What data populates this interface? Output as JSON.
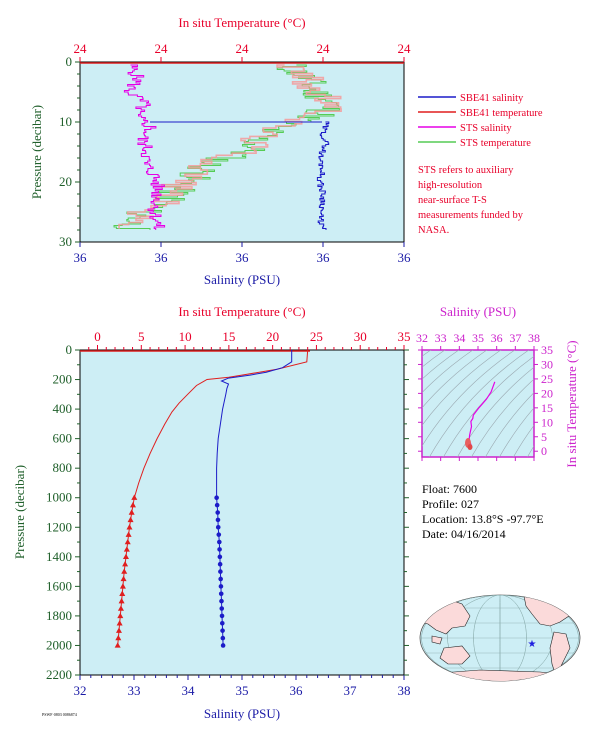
{
  "colors": {
    "panel_bg": "#cdeef5",
    "temperature_axis": "#e8002a",
    "salinity_axis": "#1a1aa6",
    "pressure_axis": "#1f5f2a",
    "ts_axis": "#cc22cc",
    "sbe41_salinity": "#1c1cc8",
    "sbe41_temperature": "#e01f1f",
    "sts_salinity": "#e600e6",
    "sts_temperature": "#55cc55",
    "sts_temperature_hi": "#f59a9a",
    "map_ocean": "#cdeef5",
    "map_land": "#fbdada",
    "float_marker": "#2020e0"
  },
  "chart_data": [
    {
      "id": "top-profile",
      "type": "line",
      "x_top_label": "In situ Temperature (°C)",
      "x_top_ticks": [
        "24",
        "24",
        "24",
        "24",
        "24"
      ],
      "x_bottom_label": "Salinity (PSU)",
      "x_bottom_ticks": [
        "36",
        "36",
        "36",
        "36",
        "36"
      ],
      "ylabel": "Pressure (decibar)",
      "ylim": [
        0,
        30
      ],
      "y_ticks": [
        0,
        10,
        20,
        30
      ],
      "legend": [
        {
          "label": "SBE41 salinity",
          "color_key": "sbe41_salinity"
        },
        {
          "label": "SBE41 temperature",
          "color_key": "sbe41_temperature"
        },
        {
          "label": "STS salinity",
          "color_key": "sts_salinity"
        },
        {
          "label": "STS temperature",
          "color_key": "sts_temperature"
        }
      ],
      "note": "STS refers to auxiliary high-resolution near-surface T-S measurements funded by NASA.",
      "series": [
        {
          "name": "STS salinity",
          "pressure": [
            1,
            3,
            5,
            7,
            9,
            11,
            13,
            15,
            17,
            19,
            21,
            23,
            25,
            27
          ],
          "x_frac": [
            0.16,
            0.18,
            0.15,
            0.2,
            0.17,
            0.22,
            0.19,
            0.21,
            0.2,
            0.23,
            0.24,
            0.24,
            0.23,
            0.24
          ]
        },
        {
          "name": "STS temperature",
          "pressure": [
            1,
            3,
            5,
            7,
            9,
            11,
            13,
            15,
            17,
            19,
            21,
            23,
            25,
            27
          ],
          "x_frac": [
            0.65,
            0.7,
            0.72,
            0.78,
            0.74,
            0.6,
            0.55,
            0.52,
            0.4,
            0.36,
            0.3,
            0.28,
            0.2,
            0.16
          ]
        },
        {
          "name": "SBE41 salinity",
          "pressure": [
            10,
            12,
            14,
            16,
            18,
            20,
            22,
            24,
            26,
            28
          ],
          "x_frac": [
            0.76,
            0.75,
            0.76,
            0.74,
            0.75,
            0.74,
            0.75,
            0.75,
            0.74,
            0.75
          ]
        }
      ]
    },
    {
      "id": "main-profile",
      "type": "line",
      "x_top_label": "In situ Temperature (°C)",
      "x_top_ticks": [
        0,
        5,
        10,
        15,
        20,
        25,
        30,
        35
      ],
      "x_top_lim": [
        -2,
        35
      ],
      "x_bottom_label": "Salinity (PSU)",
      "x_bottom_ticks": [
        32,
        33,
        34,
        35,
        36,
        37,
        38
      ],
      "x_bottom_lim": [
        32,
        38
      ],
      "ylabel": "Pressure (decibar)",
      "ylim": [
        0,
        2200
      ],
      "y_ticks": [
        0,
        200,
        400,
        600,
        800,
        1000,
        1200,
        1400,
        1600,
        1800,
        2000,
        2200
      ],
      "series": [
        {
          "name": "SBE41 temperature",
          "pressure": [
            0,
            80,
            130,
            165,
            185,
            200,
            240,
            300,
            360,
            420,
            500,
            600,
            700,
            800,
            900,
            1000,
            1100,
            1200,
            1300,
            1400,
            1500,
            1600,
            1700,
            1800,
            1900,
            2000
          ],
          "temperature": [
            24.0,
            23.9,
            20.5,
            17.0,
            15.0,
            12.5,
            11.3,
            10.3,
            9.3,
            8.5,
            7.7,
            6.8,
            6.0,
            5.3,
            4.7,
            4.2,
            3.9,
            3.65,
            3.45,
            3.25,
            3.05,
            2.9,
            2.75,
            2.6,
            2.45,
            2.3
          ]
        },
        {
          "name": "SBE41 salinity",
          "pressure": [
            0,
            80,
            120,
            150,
            170,
            190,
            210,
            230,
            260,
            300,
            400,
            500,
            600,
            700,
            800,
            900,
            1000,
            1100,
            1200,
            1300,
            1400,
            1500,
            1600,
            1700,
            1800,
            1900,
            2000
          ],
          "salinity": [
            35.92,
            35.92,
            35.75,
            35.45,
            35.15,
            34.75,
            34.62,
            34.75,
            34.72,
            34.7,
            34.64,
            34.6,
            34.56,
            34.54,
            34.53,
            34.53,
            34.53,
            34.55,
            34.56,
            34.58,
            34.59,
            34.6,
            34.61,
            34.62,
            34.63,
            34.64,
            34.65
          ]
        }
      ],
      "marker_pressures": [
        1000,
        1050,
        1100,
        1150,
        1200,
        1250,
        1300,
        1350,
        1400,
        1450,
        1500,
        1550,
        1600,
        1650,
        1700,
        1750,
        1800,
        1850,
        1900,
        1950,
        2000
      ]
    },
    {
      "id": "ts-diagram",
      "type": "line",
      "x_label": "Salinity (PSU)",
      "x_ticks": [
        32,
        33,
        34,
        35,
        36,
        37,
        38
      ],
      "xlim": [
        32,
        38
      ],
      "ylabel": "In situ Temperature (°C)",
      "y_ticks": [
        0,
        5,
        10,
        15,
        20,
        25,
        30,
        35
      ],
      "ylim": [
        -2,
        35
      ],
      "series": [
        {
          "name": "T-S",
          "salinity": [
            34.63,
            34.56,
            34.53,
            34.55,
            34.6,
            34.65,
            34.62,
            34.72,
            34.75,
            35.05,
            35.25,
            35.45,
            35.7,
            35.9
          ],
          "temperature": [
            2.3,
            3.0,
            4.2,
            5.5,
            7.0,
            8.5,
            10.3,
            11.3,
            12.5,
            15.0,
            16.5,
            18.0,
            20.5,
            24.0
          ]
        }
      ]
    }
  ],
  "float_info": {
    "float_line": "Float:  7600",
    "profile_line": "Profile:  027",
    "location_line": "Location:  13.8°S  -97.7°E",
    "date_line": "Date:  04/16/2014"
  },
  "map": {
    "land": "map_land",
    "marker": "float-position-star"
  },
  "footer_id": "PSWF·0803 0086874"
}
